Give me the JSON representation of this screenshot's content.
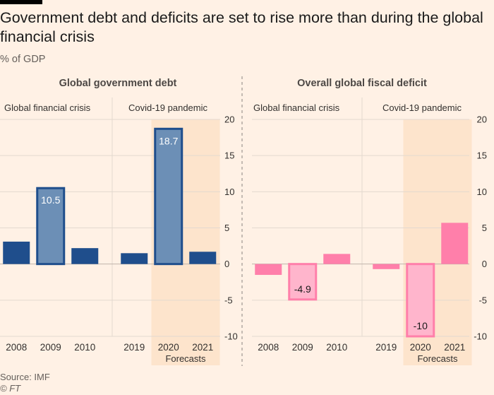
{
  "title": "Government debt and deficits are set to rise more than during the global financial crisis",
  "subtitle": "% of GDP",
  "source": "Source: IMF",
  "credit": "© FT",
  "colors": {
    "background": "#fff1e5",
    "forecast_shade": "#fde4cc",
    "debt_bar": "#1f4e8c",
    "debt_bar_highlight": "#6c8fb6",
    "deficit_bar": "#ff7faa",
    "deficit_bar_highlight": "#ffb5cc",
    "grid": "#e3d9cf",
    "zero_line": "#bfb5ab",
    "text": "#33302e"
  },
  "chart_data": [
    {
      "type": "bar",
      "title": "Global government debt",
      "group_labels": [
        "Global financial crisis",
        "Covid-19 pandemic"
      ],
      "categories": [
        "2008",
        "2009",
        "2010",
        "2019",
        "2020",
        "2021"
      ],
      "values": [
        3.1,
        10.5,
        2.2,
        1.5,
        18.7,
        1.7
      ],
      "data_labels": [
        "",
        "10.5",
        "",
        "",
        "18.7",
        ""
      ],
      "highlighted": [
        "2009",
        "2020"
      ],
      "forecast_categories": [
        "2020",
        "2021"
      ],
      "forecast_label": "Forecasts",
      "ylim": [
        -10,
        20
      ],
      "yticks": [
        -10,
        -5,
        0,
        5,
        10,
        15,
        20
      ],
      "ytick_labels": [
        "-10",
        "-5",
        "0",
        "5",
        "10",
        "15",
        "20"
      ],
      "grid": true
    },
    {
      "type": "bar",
      "title": "Overall global fiscal deficit",
      "group_labels": [
        "Global financial crisis",
        "Covid-19 pandemic"
      ],
      "categories": [
        "2008",
        "2009",
        "2010",
        "2019",
        "2020",
        "2021"
      ],
      "values": [
        -1.5,
        -4.9,
        1.4,
        -0.7,
        -10,
        5.7
      ],
      "data_labels": [
        "",
        "-4.9",
        "",
        "",
        "-10",
        ""
      ],
      "highlighted": [
        "2009",
        "2020"
      ],
      "forecast_categories": [
        "2020",
        "2021"
      ],
      "forecast_label": "Forecasts",
      "ylim": [
        -10,
        20
      ],
      "yticks": [
        -10,
        -5,
        0,
        5,
        10,
        15,
        20
      ],
      "ytick_labels": [
        "-10",
        "-5",
        "0",
        "5",
        "10",
        "15",
        "20"
      ],
      "grid": true
    }
  ]
}
